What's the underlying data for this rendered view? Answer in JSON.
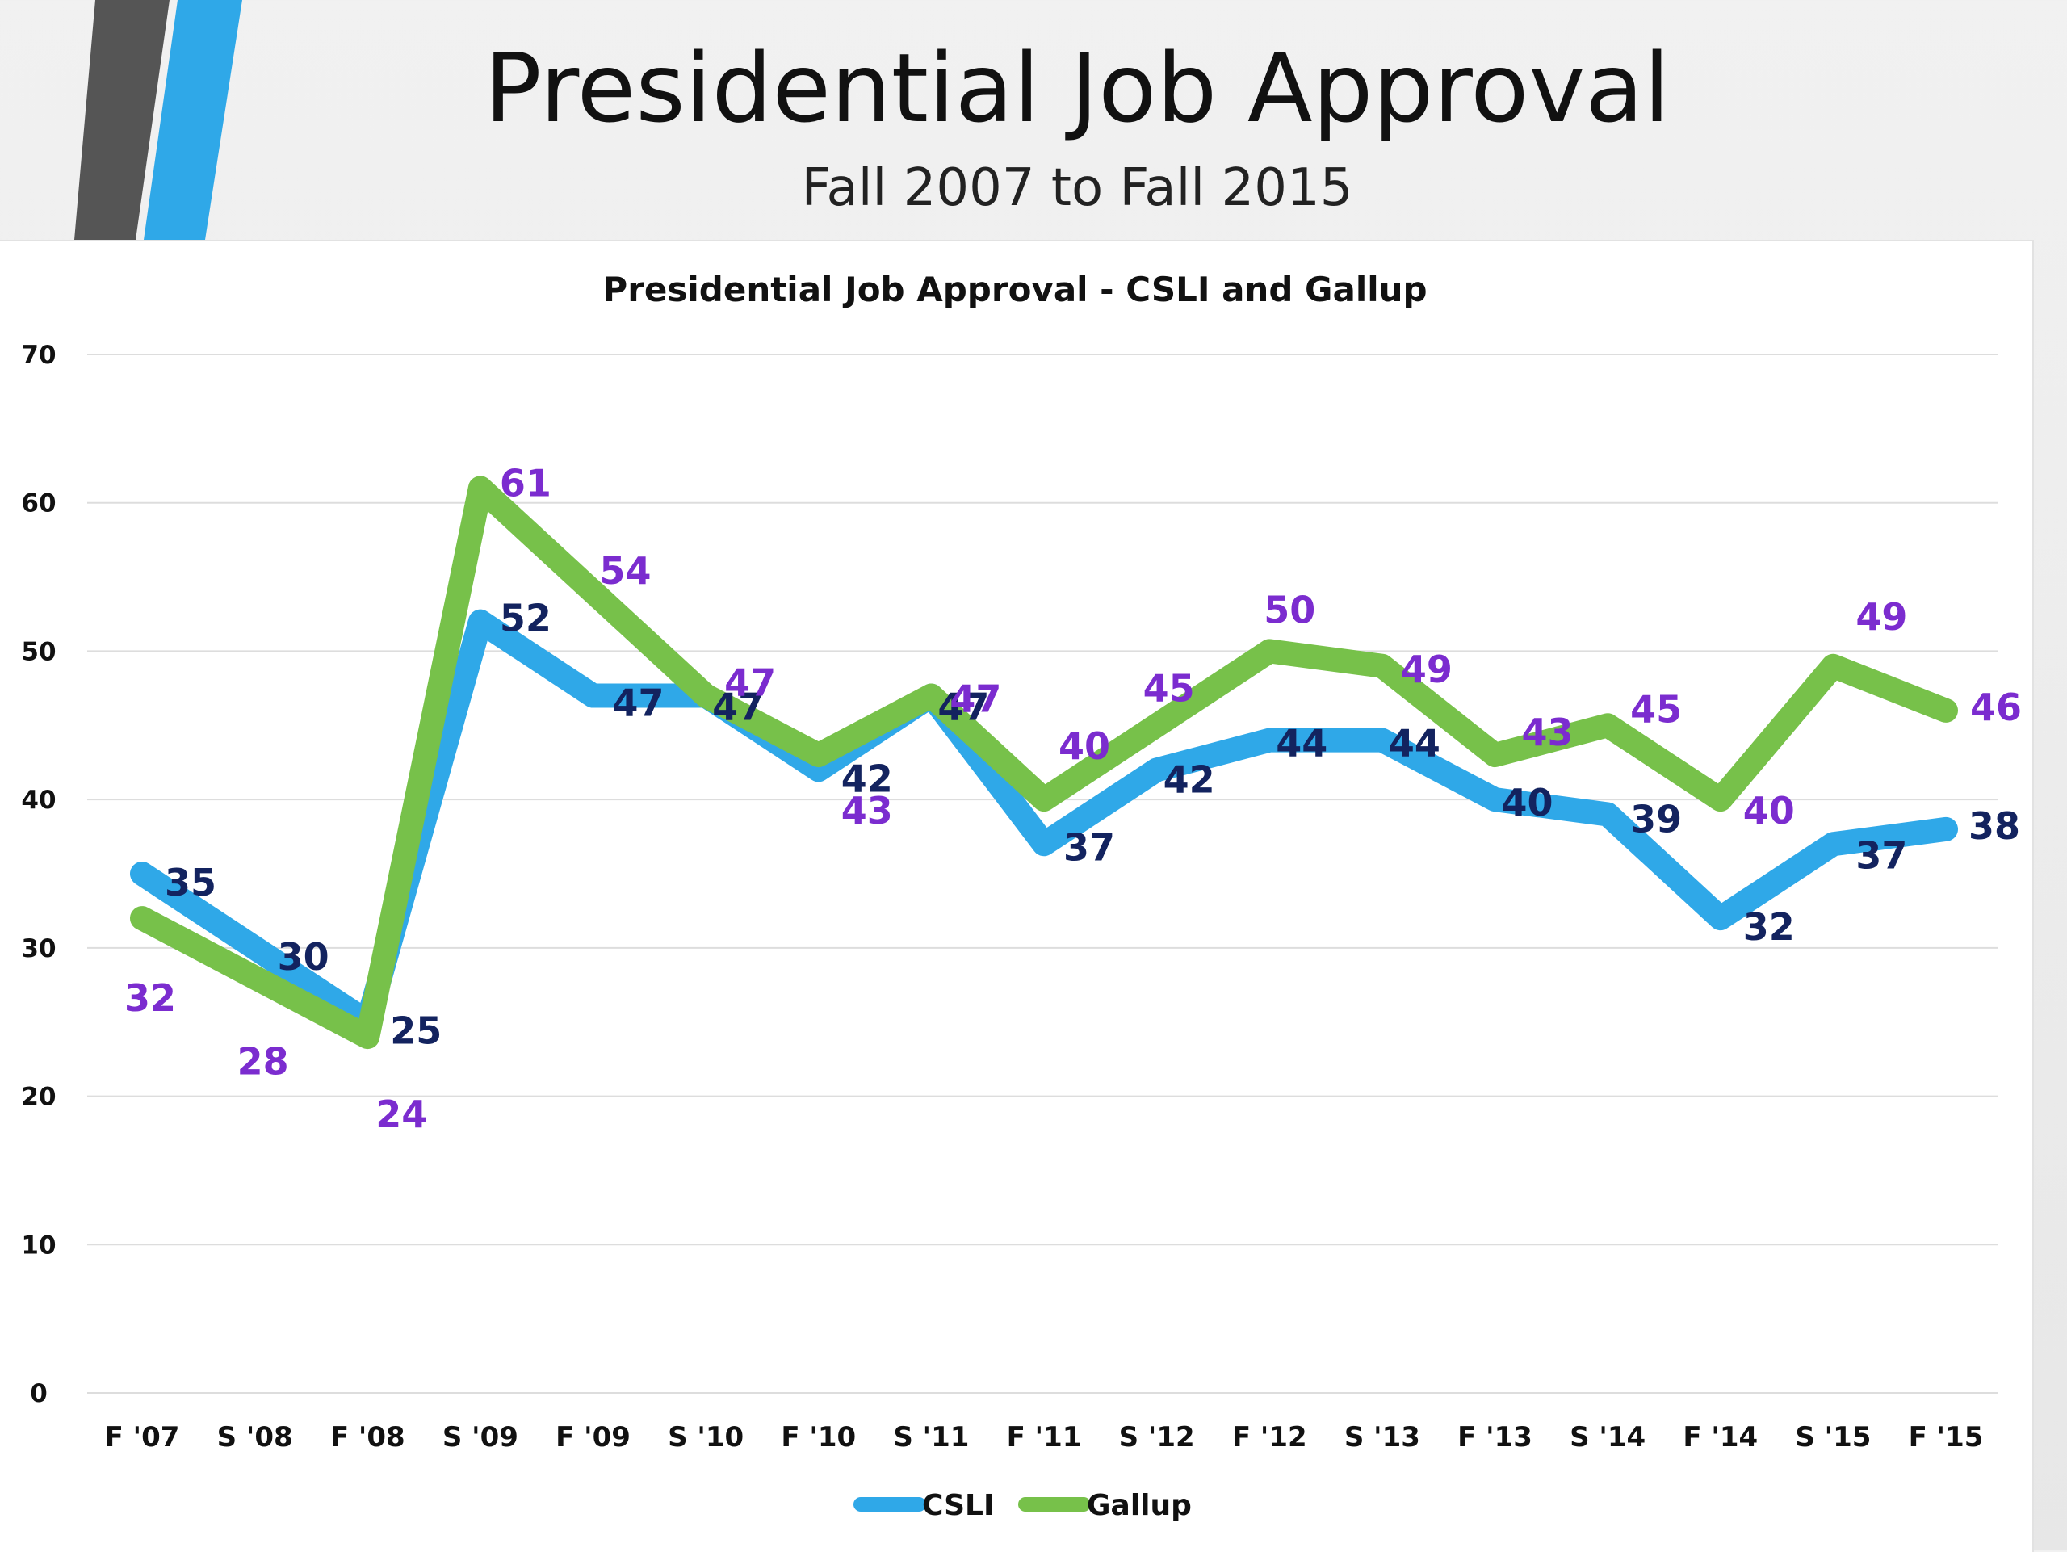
{
  "slide": {
    "title": "Presidential Job Approval",
    "subtitle": "Fall 2007 to Fall 2015"
  },
  "colors": {
    "csli_line": "#2fa8e8",
    "gallup_line": "#77c14a",
    "csli_label": "#13235f",
    "gallup_label": "#7b2ccf",
    "gridline": "#dddddd",
    "deco_dark": "#555555",
    "deco_blue": "#2fa8e8"
  },
  "chart_data": {
    "type": "line",
    "title": "Presidential Job Approval - CSLI and Gallup",
    "categories": [
      "F '07",
      "S '08",
      "F '08",
      "S '09",
      "F '09",
      "S '10",
      "F '10",
      "S '11",
      "F '11",
      "S '12",
      "F '12",
      "S '13",
      "F '13",
      "S '14",
      "F '14",
      "S '15",
      "F '15"
    ],
    "series": [
      {
        "name": "CSLI",
        "values": [
          35,
          30,
          25,
          52,
          47,
          47,
          42,
          47,
          37,
          42,
          44,
          44,
          40,
          39,
          32,
          37,
          38
        ]
      },
      {
        "name": "Gallup",
        "values": [
          32,
          28,
          24,
          61,
          54,
          47,
          43,
          47,
          40,
          45,
          50,
          49,
          43,
          45,
          40,
          49,
          46
        ]
      }
    ],
    "ylim": [
      0,
      70
    ],
    "yticks": [
      0,
      10,
      20,
      30,
      40,
      50,
      60,
      70
    ],
    "grid": true,
    "legend_position": "bottom",
    "xlabel": "",
    "ylabel": ""
  }
}
